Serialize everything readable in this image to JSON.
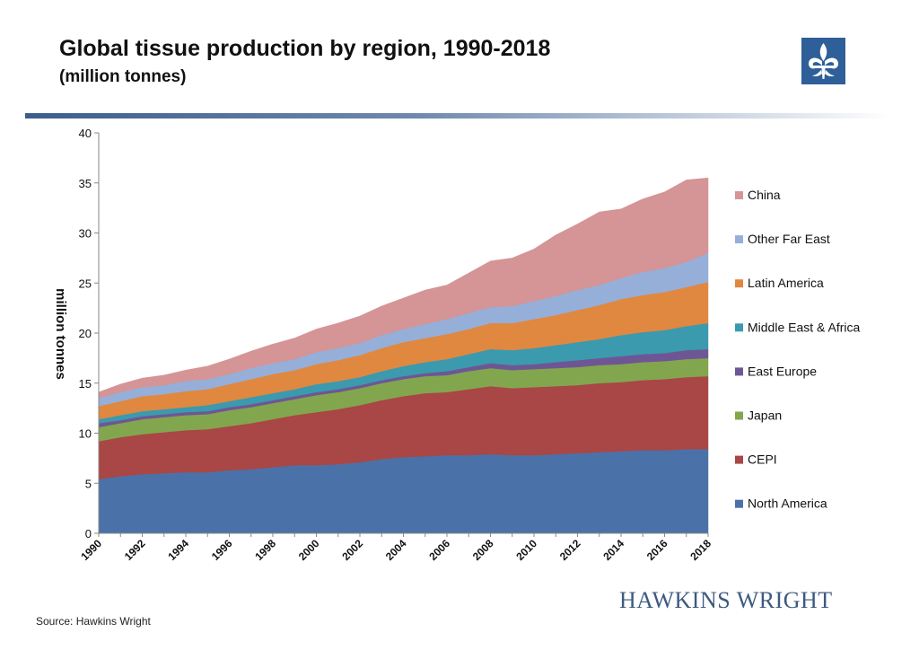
{
  "header": {
    "title": "Global tissue production by region, 1990-2018",
    "subtitle": "(million tonnes)"
  },
  "logo": {
    "icon": "fleur-de-lis-icon",
    "color": "#2f5f98"
  },
  "footer": {
    "source": "Source: Hawkins Wright",
    "brand": "HAWKINS WRIGHT"
  },
  "chart_data": {
    "type": "area",
    "stacked": true,
    "title": "Global tissue production by region, 1990-2018",
    "subtitle": "(million tonnes)",
    "ylabel": "million tonnes",
    "xlabel": "",
    "ylim": [
      0,
      40
    ],
    "yticks": [
      "0",
      "5",
      "10",
      "15",
      "20",
      "25",
      "30",
      "35",
      "40"
    ],
    "x": [
      1990,
      1991,
      1992,
      1993,
      1994,
      1995,
      1996,
      1997,
      1998,
      1999,
      2000,
      2001,
      2002,
      2003,
      2004,
      2005,
      2006,
      2007,
      2008,
      2009,
      2010,
      2011,
      2012,
      2013,
      2014,
      2015,
      2016,
      2017,
      2018
    ],
    "xticks": [
      "1990",
      "1992",
      "1994",
      "1996",
      "1998",
      "2000",
      "2002",
      "2004",
      "2006",
      "2008",
      "2010",
      "2012",
      "2014",
      "2016",
      "2018"
    ],
    "legend_position": "right",
    "grid": false,
    "series": [
      {
        "name": "North America",
        "color": "#4a72a8",
        "values": [
          5.4,
          5.7,
          5.9,
          6.0,
          6.1,
          6.1,
          6.3,
          6.4,
          6.6,
          6.8,
          6.8,
          6.9,
          7.1,
          7.4,
          7.6,
          7.7,
          7.8,
          7.8,
          7.9,
          7.8,
          7.8,
          7.9,
          8.0,
          8.1,
          8.2,
          8.3,
          8.3,
          8.4,
          8.4
        ]
      },
      {
        "name": "CEPI",
        "color": "#a94646",
        "values": [
          3.8,
          3.9,
          4.0,
          4.1,
          4.2,
          4.3,
          4.4,
          4.6,
          4.8,
          5.0,
          5.3,
          5.5,
          5.7,
          5.9,
          6.1,
          6.3,
          6.3,
          6.6,
          6.8,
          6.7,
          6.8,
          6.8,
          6.8,
          6.9,
          6.9,
          7.0,
          7.1,
          7.2,
          7.3
        ]
      },
      {
        "name": "Japan",
        "color": "#82a64e",
        "values": [
          1.4,
          1.4,
          1.5,
          1.5,
          1.5,
          1.5,
          1.6,
          1.6,
          1.6,
          1.6,
          1.7,
          1.7,
          1.7,
          1.7,
          1.7,
          1.7,
          1.7,
          1.8,
          1.8,
          1.8,
          1.8,
          1.8,
          1.8,
          1.8,
          1.8,
          1.8,
          1.8,
          1.8,
          1.8
        ]
      },
      {
        "name": "East Europe",
        "color": "#6e5695",
        "values": [
          0.4,
          0.3,
          0.3,
          0.3,
          0.3,
          0.3,
          0.3,
          0.3,
          0.3,
          0.3,
          0.3,
          0.3,
          0.3,
          0.3,
          0.3,
          0.3,
          0.4,
          0.4,
          0.5,
          0.5,
          0.5,
          0.6,
          0.7,
          0.7,
          0.8,
          0.8,
          0.8,
          0.9,
          0.9
        ]
      },
      {
        "name": "Middle East & Africa",
        "color": "#3b9aae",
        "values": [
          0.4,
          0.5,
          0.5,
          0.5,
          0.5,
          0.6,
          0.6,
          0.7,
          0.7,
          0.7,
          0.8,
          0.8,
          0.8,
          0.9,
          1.0,
          1.1,
          1.2,
          1.3,
          1.4,
          1.5,
          1.6,
          1.7,
          1.8,
          1.9,
          2.1,
          2.2,
          2.3,
          2.4,
          2.6
        ]
      },
      {
        "name": "Latin America",
        "color": "#e08840",
        "values": [
          1.3,
          1.4,
          1.5,
          1.5,
          1.6,
          1.6,
          1.7,
          1.8,
          1.9,
          1.9,
          2.0,
          2.1,
          2.2,
          2.3,
          2.4,
          2.4,
          2.5,
          2.5,
          2.6,
          2.7,
          2.9,
          3.0,
          3.2,
          3.4,
          3.6,
          3.7,
          3.8,
          3.9,
          4.1
        ]
      },
      {
        "name": "Other Far East",
        "color": "#95afd9",
        "values": [
          0.8,
          0.9,
          0.9,
          0.9,
          1.0,
          1.0,
          1.0,
          1.1,
          1.1,
          1.1,
          1.2,
          1.2,
          1.2,
          1.3,
          1.3,
          1.4,
          1.5,
          1.6,
          1.6,
          1.7,
          1.8,
          1.9,
          2.0,
          2.0,
          2.1,
          2.3,
          2.4,
          2.5,
          2.9
        ]
      },
      {
        "name": "China",
        "color": "#d59495",
        "values": [
          0.6,
          0.8,
          0.9,
          1.0,
          1.1,
          1.3,
          1.5,
          1.7,
          1.9,
          2.1,
          2.3,
          2.5,
          2.7,
          2.9,
          3.1,
          3.4,
          3.4,
          4.0,
          4.6,
          4.8,
          5.2,
          6.1,
          6.6,
          7.3,
          6.9,
          7.3,
          7.6,
          8.2,
          7.5
        ]
      }
    ]
  }
}
